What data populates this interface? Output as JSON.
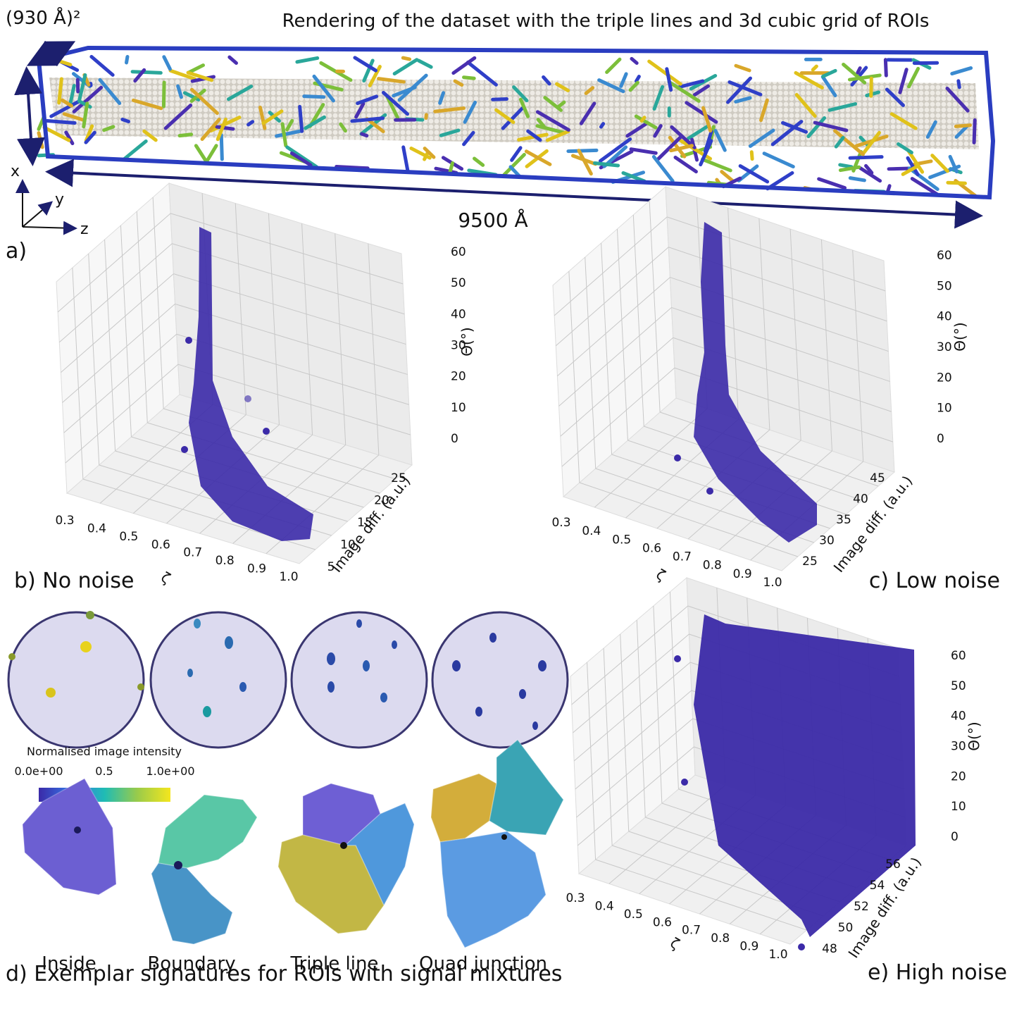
{
  "header": {
    "title": "Rendering of the dataset with the triple lines and 3d cubic grid of ROIs",
    "cross_section": "(930 Å)²",
    "length": "9500 Å",
    "axis_names": [
      "x",
      "y",
      "z"
    ],
    "panel_label": "a)"
  },
  "plots": [
    {
      "caption": "b) No noise",
      "x_label": "ζ",
      "y_label": "Image diff. (a.u.)",
      "z_label": "Θ(°)",
      "x_ticks": [
        "0.3",
        "0.4",
        "0.5",
        "0.6",
        "0.7",
        "0.8",
        "0.9",
        "1.0"
      ],
      "y_ticks": [
        "5",
        "10",
        "15",
        "20",
        "25"
      ],
      "z_ticks": [
        "0",
        "10",
        "20",
        "30",
        "40",
        "50",
        "60"
      ]
    },
    {
      "caption": "c) Low noise",
      "x_label": "ζ",
      "y_label": "Image diff. (a.u.)",
      "z_label": "Θ(°)",
      "x_ticks": [
        "0.3",
        "0.4",
        "0.5",
        "0.6",
        "0.7",
        "0.8",
        "0.9",
        "1.0"
      ],
      "y_ticks": [
        "25",
        "30",
        "35",
        "40",
        "45"
      ],
      "z_ticks": [
        "0",
        "10",
        "20",
        "30",
        "40",
        "50",
        "60"
      ]
    },
    {
      "caption": "e) High noise",
      "x_label": "ζ",
      "y_label": "Image diff. (a.u.)",
      "z_label": "Θ(°)",
      "x_ticks": [
        "0.3",
        "0.4",
        "0.5",
        "0.6",
        "0.7",
        "0.8",
        "0.9",
        "1.0"
      ],
      "y_ticks": [
        "48",
        "50",
        "52",
        "54",
        "56"
      ],
      "z_ticks": [
        "0",
        "10",
        "20",
        "30",
        "40",
        "50",
        "60"
      ]
    }
  ],
  "signatures": {
    "colorbar_label": "Normalised image intensity",
    "colorbar_ticks": [
      "0.0e+00",
      "0.5",
      "1.0e+00"
    ],
    "roi_labels": [
      "Inside",
      "Boundary",
      "Triple line",
      "Quad junction"
    ],
    "caption": "d) Exemplar signatures for ROIs with signal mixtures"
  }
}
